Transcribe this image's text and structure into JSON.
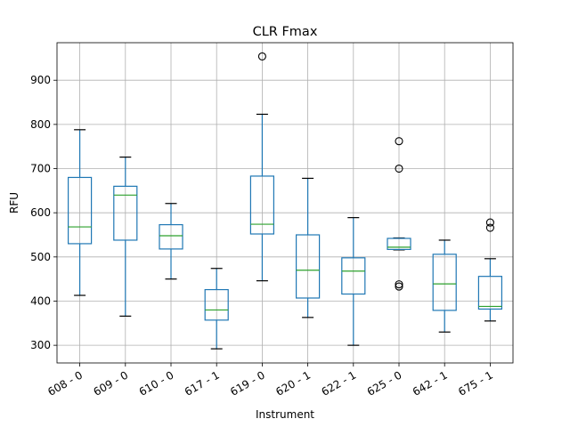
{
  "chart_data": {
    "type": "boxplot",
    "title": "CLR Fmax",
    "xlabel": "Instrument",
    "ylabel": "RFU",
    "ylim": [
      260,
      985
    ],
    "yticks": [
      300,
      400,
      500,
      600,
      700,
      800,
      900
    ],
    "grid": true,
    "categories": [
      "608 - 0",
      "609 - 0",
      "610 - 0",
      "617 - 1",
      "619 - 0",
      "620 - 1",
      "622 - 1",
      "625 - 0",
      "642 - 1",
      "675 - 1"
    ],
    "boxes": [
      {
        "whisker_low": 413,
        "q1": 530,
        "median": 568,
        "q3": 680,
        "whisker_high": 788,
        "fliers": []
      },
      {
        "whisker_low": 366,
        "q1": 538,
        "median": 640,
        "q3": 660,
        "whisker_high": 726,
        "fliers": []
      },
      {
        "whisker_low": 450,
        "q1": 518,
        "median": 548,
        "q3": 573,
        "whisker_high": 621,
        "fliers": []
      },
      {
        "whisker_low": 292,
        "q1": 357,
        "median": 380,
        "q3": 426,
        "whisker_high": 474,
        "fliers": []
      },
      {
        "whisker_low": 446,
        "q1": 552,
        "median": 574,
        "q3": 683,
        "whisker_high": 823,
        "fliers": [
          954
        ]
      },
      {
        "whisker_low": 363,
        "q1": 407,
        "median": 470,
        "q3": 550,
        "whisker_high": 678,
        "fliers": []
      },
      {
        "whisker_low": 300,
        "q1": 416,
        "median": 468,
        "q3": 498,
        "whisker_high": 589,
        "fliers": []
      },
      {
        "whisker_low": 516,
        "q1": 517,
        "median": 522,
        "q3": 542,
        "whisker_high": 543,
        "fliers": [
          762,
          700,
          438,
          433
        ]
      },
      {
        "whisker_low": 330,
        "q1": 379,
        "median": 439,
        "q3": 506,
        "whisker_high": 538,
        "fliers": []
      },
      {
        "whisker_low": 355,
        "q1": 382,
        "median": 388,
        "q3": 456,
        "whisker_high": 496,
        "fliers": [
          578,
          566
        ]
      }
    ]
  }
}
